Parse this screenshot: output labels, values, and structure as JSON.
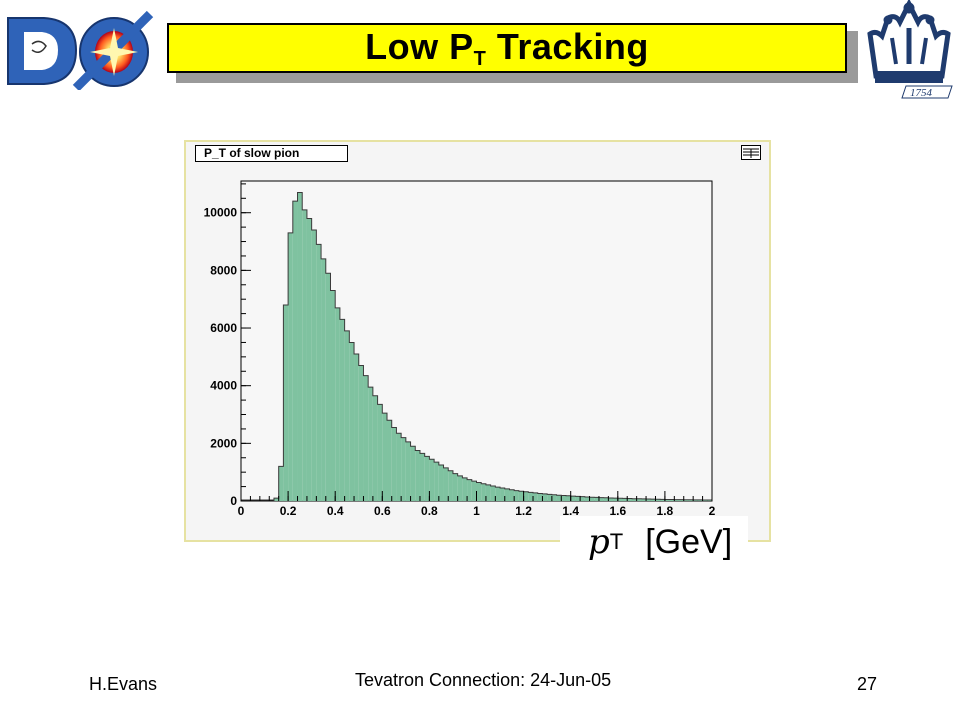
{
  "slide": {
    "title_main": "Low P",
    "title_sub": "T",
    "title_rest": " Tracking",
    "footer_left": "H.Evans",
    "footer_center": "Tevatron Connection: 24-Jun-05",
    "footer_right": "27"
  },
  "logos": {
    "left_letters": "DØ",
    "right_year": "1754"
  },
  "colors": {
    "title_bg": "#ffff00",
    "hist_fill": "#7fc2a0",
    "frame_border": "#e6e2a2"
  },
  "chart_data": {
    "type": "bar",
    "title": "P_T of slow pion",
    "xlabel_var": "p",
    "xlabel_sub": "T",
    "xlabel_unit": "[GeV]",
    "xlim": [
      0,
      2
    ],
    "ylim": [
      0,
      11100
    ],
    "xticks": [
      "0",
      "0.2",
      "0.4",
      "0.6",
      "0.8",
      "1",
      "1.2",
      "1.4",
      "1.6",
      "1.8",
      "2"
    ],
    "yticks": [
      "0",
      "2000",
      "4000",
      "6000",
      "8000",
      "10000"
    ],
    "bin_width": 0.02,
    "bin_starts": [
      0.14,
      0.16,
      0.18,
      0.2,
      0.22,
      0.24,
      0.26,
      0.28,
      0.3,
      0.32,
      0.34,
      0.36,
      0.38,
      0.4,
      0.42,
      0.44,
      0.46,
      0.48,
      0.5,
      0.52,
      0.54,
      0.56,
      0.58,
      0.6,
      0.62,
      0.64,
      0.66,
      0.68,
      0.7,
      0.72,
      0.74,
      0.76,
      0.78,
      0.8,
      0.82,
      0.84,
      0.86,
      0.88,
      0.9,
      0.92,
      0.94,
      0.96,
      0.98,
      1.0,
      1.02,
      1.04,
      1.06,
      1.08,
      1.1,
      1.12,
      1.14,
      1.16,
      1.18,
      1.2,
      1.22,
      1.24,
      1.26,
      1.28,
      1.3,
      1.32,
      1.34,
      1.36,
      1.38,
      1.4,
      1.42,
      1.44,
      1.46,
      1.48,
      1.5,
      1.52,
      1.54,
      1.56,
      1.58,
      1.6,
      1.62,
      1.64,
      1.66,
      1.68,
      1.7,
      1.72,
      1.74,
      1.76,
      1.78,
      1.8,
      1.82,
      1.84,
      1.86,
      1.88,
      1.9,
      1.92,
      1.94,
      1.96,
      1.98
    ],
    "values": [
      100,
      1200,
      6800,
      9300,
      10400,
      10700,
      10100,
      9800,
      9400,
      8900,
      8400,
      7900,
      7300,
      6700,
      6300,
      5900,
      5500,
      5100,
      4700,
      4350,
      3950,
      3650,
      3350,
      3050,
      2800,
      2550,
      2350,
      2200,
      2050,
      1900,
      1750,
      1650,
      1550,
      1450,
      1350,
      1250,
      1150,
      1050,
      950,
      870,
      800,
      740,
      690,
      640,
      600,
      560,
      520,
      480,
      450,
      420,
      390,
      360,
      340,
      320,
      300,
      280,
      260,
      245,
      230,
      215,
      200,
      190,
      180,
      170,
      160,
      150,
      140,
      132,
      125,
      118,
      112,
      106,
      100,
      95,
      90,
      85,
      80,
      76,
      72,
      68,
      64,
      60,
      57,
      54,
      51,
      48,
      46,
      44,
      42,
      40,
      38,
      36,
      34
    ]
  }
}
